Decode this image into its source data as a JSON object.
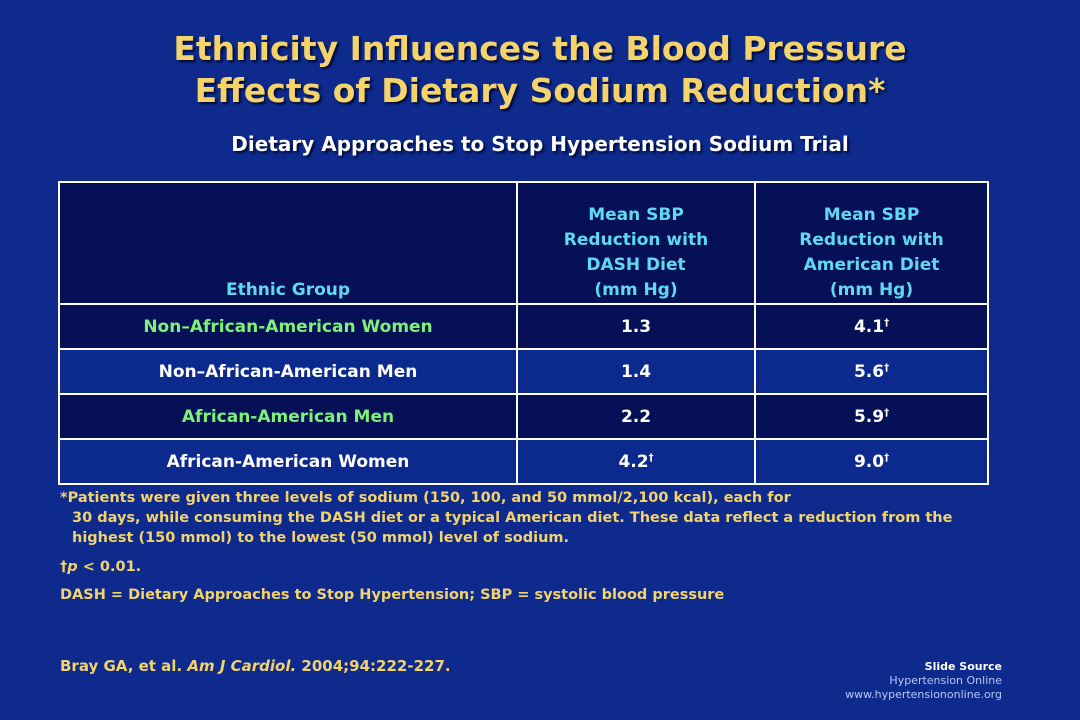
{
  "title_line1": "Ethnicity Influences the Blood Pressure",
  "title_line2": "Effects of Dietary Sodium Reduction*",
  "subtitle": "Dietary Approaches to Stop Hypertension Sodium Trial",
  "table": {
    "headers": {
      "col1": "Ethnic Group",
      "col2_l1": "Mean SBP",
      "col2_l2": "Reduction with",
      "col2_l3": "DASH Diet",
      "col2_l4": "(mm Hg)",
      "col3_l1": "Mean SBP",
      "col3_l2": "Reduction with",
      "col3_l3": "American Diet",
      "col3_l4": "(mm Hg)"
    },
    "rows": [
      {
        "group": "Non–African-American Women",
        "dash": "1.3",
        "dash_mark": "",
        "american": "4.1",
        "american_mark": "†"
      },
      {
        "group": "Non–African-American Men",
        "dash": "1.4",
        "dash_mark": "",
        "american": "5.6",
        "american_mark": "†"
      },
      {
        "group": "African-American Men",
        "dash": "2.2",
        "dash_mark": "",
        "american": "5.9",
        "american_mark": "†"
      },
      {
        "group": "African-American Women",
        "dash": "4.2",
        "dash_mark": "†",
        "american": "9.0",
        "american_mark": "†"
      }
    ]
  },
  "notes": {
    "footnote_l1": "*Patients were given three levels of sodium (150, 100, and 50 mmol/2,100 kcal), each for",
    "footnote_l2": "30 days, while consuming the DASH diet or a typical American diet. These data reflect a reduction from the",
    "footnote_l3": "highest (150 mmol) to the lowest (50 mmol) level of sodium.",
    "dagger": "†",
    "p_label": "p",
    "p_rest": " < 0.01.",
    "abbrev": "DASH = Dietary Approaches to Stop Hypertension; SBP = systolic blood pressure"
  },
  "reference": {
    "authors": "Bray GA, et al. ",
    "journal": "Am J Cardiol.",
    "citation": " 2004;94:222-227."
  },
  "source": {
    "heading": "Slide Source",
    "name": "Hypertension Online",
    "url": "www.hypertensiononline.org"
  }
}
